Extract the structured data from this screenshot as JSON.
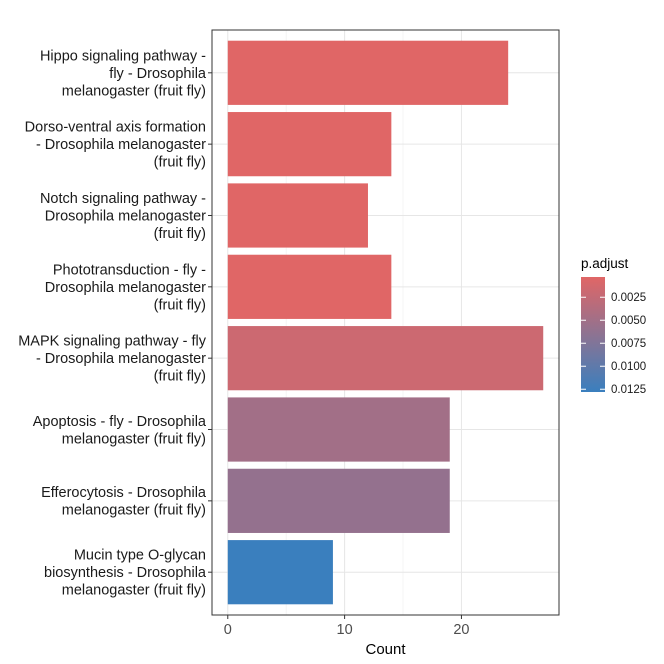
{
  "chart_data": {
    "type": "bar",
    "orientation": "horizontal",
    "xlabel": "Count",
    "ylabel": "",
    "xlim": [
      -1.35,
      28.35
    ],
    "xticks": [
      0,
      10,
      20
    ],
    "grid": true,
    "legend_position": "right",
    "categories": [
      [
        "Hippo signaling pathway -",
        "fly - Drosophila",
        "melanogaster (fruit fly)"
      ],
      [
        "Dorso-ventral axis formation",
        "- Drosophila melanogaster",
        "(fruit fly)"
      ],
      [
        "Notch signaling pathway -",
        "Drosophila melanogaster",
        "(fruit fly)"
      ],
      [
        "Phototransduction - fly -",
        "Drosophila melanogaster",
        "(fruit fly)"
      ],
      [
        "MAPK signaling pathway - fly",
        "- Drosophila melanogaster",
        "(fruit fly)"
      ],
      [
        "Apoptosis - fly - Drosophila",
        "melanogaster (fruit fly)"
      ],
      [
        "Efferocytosis - Drosophila",
        "melanogaster (fruit fly)"
      ],
      [
        "Mucin type O-glycan",
        "biosynthesis - Drosophila",
        "melanogaster (fruit fly)"
      ]
    ],
    "values": [
      24,
      14,
      12,
      14,
      27,
      19,
      19,
      9
    ],
    "p_adjust": [
      0.0003,
      0.0003,
      0.0003,
      0.0003,
      0.0018,
      0.005,
      0.006,
      0.0128
    ],
    "legend": {
      "title": "p.adjust",
      "ticks": [
        "0.0025",
        "0.0050",
        "0.0075",
        "0.0100",
        "0.0125"
      ],
      "tick_values": [
        0.0025,
        0.005,
        0.0075,
        0.01,
        0.0125
      ],
      "range": [
        0.0003,
        0.0128
      ],
      "color_low": "#E06666",
      "color_high": "#3A7FBE"
    }
  }
}
